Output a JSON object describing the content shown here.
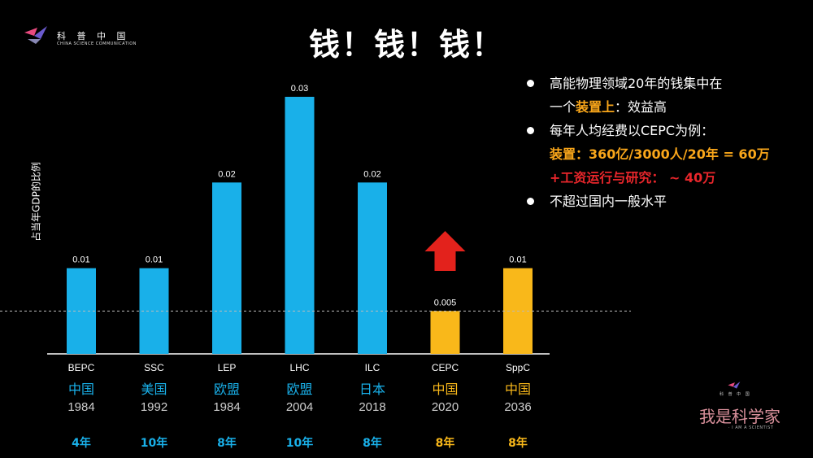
{
  "logo": {
    "cn": "科 普 中 国",
    "en": "CHINA SCIENCE COMMUNICATION"
  },
  "title": "钱！钱！钱！",
  "colors": {
    "blue": "#19b0e9",
    "orange": "#f9b81a",
    "red": "#e3221c",
    "background": "#000000",
    "highlight_orange": "#f9a61a",
    "highlight_red": "#e8262b"
  },
  "chart_data": {
    "type": "bar",
    "ylabel": "占当年GDP的比例",
    "categories": [
      "BEPC",
      "SSC",
      "LEP",
      "LHC",
      "ILC",
      "CEPC",
      "SppC"
    ],
    "values": [
      0.01,
      0.01,
      0.02,
      0.03,
      0.02,
      0.005,
      0.01
    ],
    "value_labels": [
      "0.01",
      "0.01",
      "0.02",
      "0.03",
      "0.02",
      "0.005",
      "0.01"
    ],
    "bar_colors": [
      "blue",
      "blue",
      "blue",
      "blue",
      "blue",
      "orange",
      "orange"
    ],
    "regions": [
      "中国",
      "美国",
      "欧盟",
      "欧盟",
      "日本",
      "中国",
      "中国"
    ],
    "years": [
      "1984",
      "1992",
      "1984",
      "2004",
      "2018",
      "2020",
      "2036"
    ],
    "durations": [
      "4年",
      "10年",
      "8年",
      "10年",
      "8年",
      "8年",
      "8年"
    ],
    "reference_line_value": 0.005,
    "up_arrow_category": "CEPC",
    "ylim": [
      0,
      0.03
    ]
  },
  "bullets": {
    "b1_line1": "高能物理领域20年的钱集中在",
    "b1_line2_pre": "一个",
    "b1_line2_hl": "装置上",
    "b1_line2_post": "：效益高",
    "b2": "每年人均经费以CEPC为例：",
    "b2_sub1": "装置：360亿/3000人/20年 = 60万",
    "b2_sub2": "+工资运行与研究： ~ 40万",
    "b3": "不超过国内一般水平"
  },
  "watermark": {
    "small": "科 普 中 国",
    "main": "我是科学家",
    "sub": "· I AM A SCIENTIST"
  }
}
